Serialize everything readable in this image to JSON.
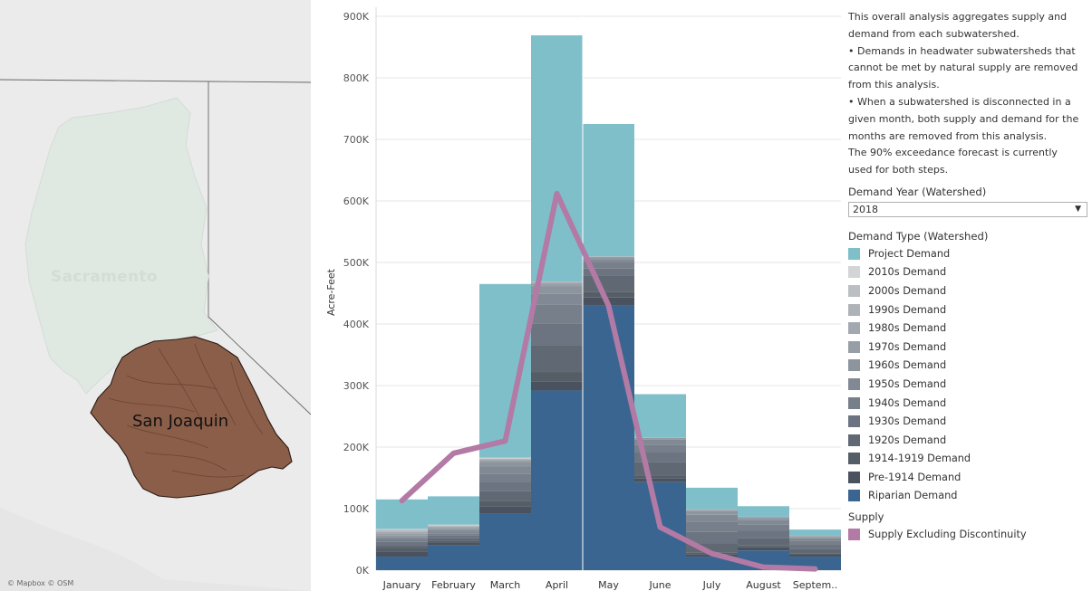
{
  "map": {
    "labels": {
      "region_a": "Sacramento",
      "region_b": "San Joaquin"
    },
    "credit": "© Mapbox  © OSM",
    "colors": {
      "sacramento": "#dfe8e1",
      "san_joaquin": "#8b5e49",
      "background": "#ebebeb"
    }
  },
  "sidebar": {
    "description_lines": [
      "This overall analysis aggregates supply and",
      "demand from each subwatershed.",
      "• Demands in headwater subwatersheds that",
      "cannot be met by natural supply are removed",
      "from this analysis.",
      "• When a subwatershed is disconnected in a",
      "given month, both supply and demand for the",
      "months are removed from this analysis.",
      "The 90% exceedance forecast is currently",
      "used for both steps."
    ],
    "demand_year_label": "Demand Year (Watershed)",
    "demand_year_value": "2018",
    "demand_type_label": "Demand Type (Watershed)",
    "supply_label": "Supply"
  },
  "chart_data": {
    "type": "bar",
    "stacked": true,
    "ylabel": "Acre-Feet",
    "ylim": [
      0,
      900000
    ],
    "yticks": [
      0,
      100000,
      200000,
      300000,
      400000,
      500000,
      600000,
      700000,
      800000,
      900000
    ],
    "ytick_labels": [
      "0K",
      "100K",
      "200K",
      "300K",
      "400K",
      "500K",
      "600K",
      "700K",
      "800K",
      "900K"
    ],
    "categories": [
      "January",
      "February",
      "March",
      "April",
      "May",
      "June",
      "July",
      "August",
      "Septem.."
    ],
    "grid": true,
    "legend_position": "right",
    "series": [
      {
        "name": "Riparian Demand",
        "color": "#3a6590",
        "values": [
          22000,
          40000,
          92000,
          292000,
          430000,
          143000,
          22000,
          32000,
          22000
        ]
      },
      {
        "name": "Pre-1914 Demand",
        "color": "#4a5260",
        "values": [
          8000,
          5000,
          12000,
          15000,
          13000,
          6000,
          4000,
          5000,
          3000
        ]
      },
      {
        "name": "1914-1919 Demand",
        "color": "#555d66",
        "values": [
          6000,
          3000,
          9000,
          15000,
          9000,
          4000,
          3000,
          3000,
          2000
        ]
      },
      {
        "name": "1920s Demand",
        "color": "#606873",
        "values": [
          5000,
          4000,
          16000,
          44000,
          26000,
          23000,
          15000,
          12000,
          8000
        ]
      },
      {
        "name": "1930s Demand",
        "color": "#6b7480",
        "values": [
          5000,
          4000,
          15000,
          35000,
          12000,
          16000,
          18000,
          12000,
          7000
        ]
      },
      {
        "name": "1940s Demand",
        "color": "#767f8a",
        "values": [
          4000,
          4000,
          13000,
          30000,
          10000,
          12000,
          16000,
          10000,
          6000
        ]
      },
      {
        "name": "1950s Demand",
        "color": "#818a94",
        "values": [
          4000,
          4000,
          12000,
          18000,
          5000,
          8000,
          12000,
          8000,
          4000
        ]
      },
      {
        "name": "1960s Demand",
        "color": "#8c949d",
        "values": [
          3000,
          3000,
          6000,
          12000,
          3000,
          2000,
          6000,
          3000,
          2000
        ]
      },
      {
        "name": "1970s Demand",
        "color": "#979ea6",
        "values": [
          3000,
          2000,
          3000,
          5000,
          1000,
          1000,
          2000,
          1000,
          1000
        ]
      },
      {
        "name": "1980s Demand",
        "color": "#a3a9b0",
        "values": [
          2000,
          2000,
          2000,
          2000,
          1000,
          1000,
          1000,
          1000,
          1000
        ]
      },
      {
        "name": "1990s Demand",
        "color": "#aeb3b9",
        "values": [
          2000,
          1000,
          1000,
          1000,
          0,
          0,
          0,
          0,
          0
        ]
      },
      {
        "name": "2000s Demand",
        "color": "#bbbfc3",
        "values": [
          2000,
          1000,
          1000,
          0,
          0,
          0,
          0,
          0,
          0
        ]
      },
      {
        "name": "2010s Demand",
        "color": "#d2d4d6",
        "values": [
          1000,
          1000,
          1000,
          0,
          0,
          0,
          0,
          0,
          0
        ]
      },
      {
        "name": "Project Demand",
        "color": "#7fbfca",
        "values": [
          48000,
          46000,
          282000,
          400000,
          215000,
          70000,
          35000,
          17000,
          10000
        ]
      }
    ],
    "line_series": [
      {
        "name": "Supply Excluding Discontinuity",
        "color": "#b27aa5",
        "values": [
          113000,
          190000,
          210000,
          612000,
          430000,
          70000,
          27000,
          5000,
          2000
        ]
      }
    ]
  }
}
